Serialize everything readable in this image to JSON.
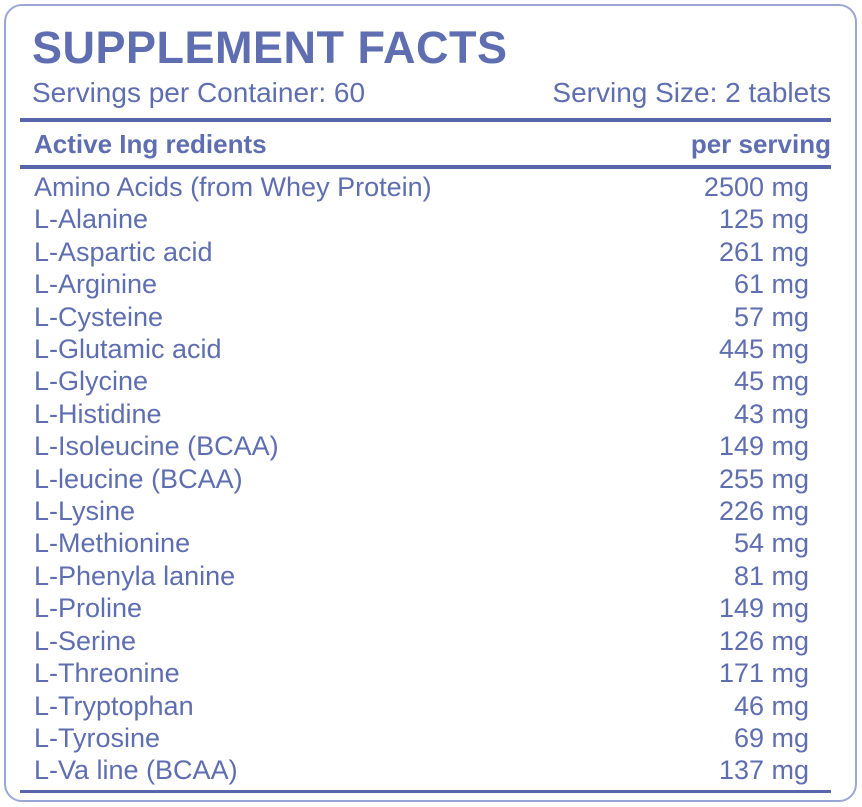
{
  "label": {
    "title": "SUPPLEMENT FACTS",
    "servings_per_container": "Servings per Container: 60",
    "serving_size": "Serving Size: 2 tablets",
    "colors": {
      "text": "#5E6EB0",
      "rule": "#5766AA",
      "outer_border": "#9AA7D6",
      "background": "#FFFFFF"
    }
  },
  "table": {
    "columns": {
      "ingredient": "Active Ing redients",
      "amount": "per serving"
    },
    "rows": [
      {
        "name": "Amino Acids (from Whey Protein)",
        "amount": "2500 mg"
      },
      {
        "name": "L-Alanine",
        "amount": "125 mg"
      },
      {
        "name": "L-Aspartic acid",
        "amount": "261 mg"
      },
      {
        "name": "L-Arginine",
        "amount": "61 mg"
      },
      {
        "name": "L-Cysteine",
        "amount": "57 mg"
      },
      {
        "name": "L-Glutamic acid",
        "amount": "445 mg"
      },
      {
        "name": "L-Glycine",
        "amount": "45 mg"
      },
      {
        "name": "L-Histidine",
        "amount": "43 mg"
      },
      {
        "name": "L-Isoleucine (BCAA)",
        "amount": "149 mg"
      },
      {
        "name": "L-leucine (BCAA)",
        "amount": "255 mg"
      },
      {
        "name": "L-Lysine",
        "amount": "226 mg"
      },
      {
        "name": "L-Methionine",
        "amount": "54 mg"
      },
      {
        "name": "L-Phenyla lanine",
        "amount": "81 mg"
      },
      {
        "name": "L-Proline",
        "amount": "149 mg"
      },
      {
        "name": "L-Serine",
        "amount": "126 mg"
      },
      {
        "name": "L-Threonine",
        "amount": "171 mg"
      },
      {
        "name": "L-Tryptophan",
        "amount": "46 mg"
      },
      {
        "name": "L-Tyrosine",
        "amount": "69 mg"
      },
      {
        "name": "L-Va line (BCAA)",
        "amount": "137 mg"
      }
    ]
  }
}
